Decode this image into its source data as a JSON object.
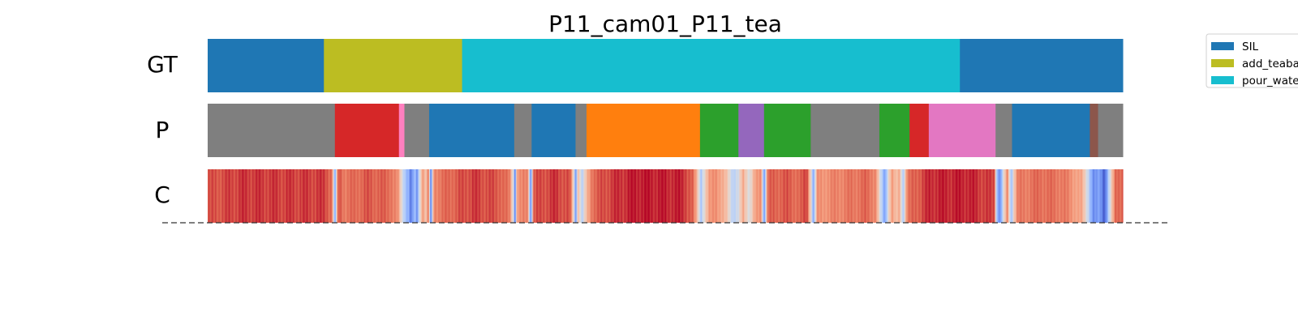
{
  "chart_data": {
    "type": "segmentation",
    "title": "P11_cam01_P11_tea",
    "total_frames": 1000,
    "rows": [
      {
        "label": "GT",
        "segments": [
          {
            "start": 0,
            "end": 127,
            "class": "SIL"
          },
          {
            "start": 127,
            "end": 278,
            "class": "add_teabag"
          },
          {
            "start": 278,
            "end": 822,
            "class": "pour_water"
          },
          {
            "start": 822,
            "end": 1000,
            "class": "SIL"
          }
        ]
      },
      {
        "label": "P",
        "segments": [
          {
            "start": 0,
            "end": 139,
            "color": "#7f7f7f"
          },
          {
            "start": 139,
            "end": 209,
            "color": "#d62728"
          },
          {
            "start": 209,
            "end": 215,
            "color": "#ff7fbf"
          },
          {
            "start": 215,
            "end": 242,
            "color": "#7f7f7f"
          },
          {
            "start": 242,
            "end": 335,
            "color": "#1f77b4"
          },
          {
            "start": 335,
            "end": 354,
            "color": "#7f7f7f"
          },
          {
            "start": 354,
            "end": 402,
            "color": "#1f77b4"
          },
          {
            "start": 402,
            "end": 414,
            "color": "#7f7f7f"
          },
          {
            "start": 414,
            "end": 538,
            "color": "#ff7f0e"
          },
          {
            "start": 538,
            "end": 580,
            "color": "#2ca02c"
          },
          {
            "start": 580,
            "end": 608,
            "color": "#9467bd"
          },
          {
            "start": 608,
            "end": 659,
            "color": "#2ca02c"
          },
          {
            "start": 659,
            "end": 734,
            "color": "#7f7f7f"
          },
          {
            "start": 734,
            "end": 767,
            "color": "#2ca02c"
          },
          {
            "start": 767,
            "end": 788,
            "color": "#d62728"
          },
          {
            "start": 788,
            "end": 861,
            "color": "#e377c2"
          },
          {
            "start": 861,
            "end": 879,
            "color": "#7f7f7f"
          },
          {
            "start": 879,
            "end": 964,
            "color": "#1f77b4"
          },
          {
            "start": 964,
            "end": 973,
            "color": "#8c564b"
          },
          {
            "start": 973,
            "end": 1000,
            "color": "#7f7f7f"
          }
        ]
      },
      {
        "label": "C",
        "colormap": "coolwarm",
        "confidence_anchors": [
          [
            0,
            0.88
          ],
          [
            40,
            0.93
          ],
          [
            80,
            0.92
          ],
          [
            128,
            0.92
          ],
          [
            136,
            0.85
          ],
          [
            139,
            0.15
          ],
          [
            141,
            0.6
          ],
          [
            143,
            0.9
          ],
          [
            150,
            0.82
          ],
          [
            175,
            0.88
          ],
          [
            200,
            0.85
          ],
          [
            208,
            0.75
          ],
          [
            212,
            0.5
          ],
          [
            216,
            0.35
          ],
          [
            220,
            0.25
          ],
          [
            222,
            0.08
          ],
          [
            226,
            0.3
          ],
          [
            229,
            0.15
          ],
          [
            232,
            0.55
          ],
          [
            236,
            0.8
          ],
          [
            238,
            0.55
          ],
          [
            241,
            0.85
          ],
          [
            244,
            0.05
          ],
          [
            247,
            0.8
          ],
          [
            262,
            0.85
          ],
          [
            290,
            0.92
          ],
          [
            320,
            0.88
          ],
          [
            330,
            0.8
          ],
          [
            334,
            0.5
          ],
          [
            336,
            0.1
          ],
          [
            338,
            0.75
          ],
          [
            350,
            0.8
          ],
          [
            353,
            0.1
          ],
          [
            356,
            0.88
          ],
          [
            380,
            0.93
          ],
          [
            396,
            0.88
          ],
          [
            400,
            0.55
          ],
          [
            402,
            0.15
          ],
          [
            405,
            0.7
          ],
          [
            409,
            0.35
          ],
          [
            413,
            0.6
          ],
          [
            420,
            0.85
          ],
          [
            440,
            0.92
          ],
          [
            470,
            0.97
          ],
          [
            520,
            0.95
          ],
          [
            530,
            0.85
          ],
          [
            535,
            0.65
          ],
          [
            539,
            0.35
          ],
          [
            543,
            0.55
          ],
          [
            548,
            0.72
          ],
          [
            555,
            0.8
          ],
          [
            568,
            0.6
          ],
          [
            574,
            0.4
          ],
          [
            580,
            0.45
          ],
          [
            585,
            0.7
          ],
          [
            592,
            0.5
          ],
          [
            598,
            0.7
          ],
          [
            605,
            0.78
          ],
          [
            608,
            0.15
          ],
          [
            612,
            0.85
          ],
          [
            630,
            0.88
          ],
          [
            648,
            0.85
          ],
          [
            655,
            0.92
          ],
          [
            660,
            0.5
          ],
          [
            662,
            0.2
          ],
          [
            666,
            0.75
          ],
          [
            690,
            0.8
          ],
          [
            720,
            0.85
          ],
          [
            730,
            0.8
          ],
          [
            735,
            0.45
          ],
          [
            740,
            0.2
          ],
          [
            744,
            0.55
          ],
          [
            748,
            0.75
          ],
          [
            752,
            0.6
          ],
          [
            756,
            0.7
          ],
          [
            760,
            0.35
          ],
          [
            764,
            0.8
          ],
          [
            770,
            0.85
          ],
          [
            790,
            0.95
          ],
          [
            830,
            0.96
          ],
          [
            860,
            0.9
          ],
          [
            862,
            0.35
          ],
          [
            866,
            0.15
          ],
          [
            870,
            0.5
          ],
          [
            874,
            0.8
          ],
          [
            878,
            0.3
          ],
          [
            881,
            0.6
          ],
          [
            885,
            0.8
          ],
          [
            910,
            0.85
          ],
          [
            935,
            0.82
          ],
          [
            955,
            0.7
          ],
          [
            963,
            0.4
          ],
          [
            968,
            0.15
          ],
          [
            975,
            0.2
          ],
          [
            980,
            0.05
          ],
          [
            985,
            0.4
          ],
          [
            992,
            0.85
          ],
          [
            1000,
            0.88
          ]
        ]
      }
    ],
    "legend": {
      "placement": "top-right",
      "entries": [
        {
          "label": "SIL",
          "color": "#1f77b4"
        },
        {
          "label": "add_teabag",
          "color": "#bcbd22"
        },
        {
          "label": "pour_water",
          "color": "#17becf"
        }
      ]
    }
  }
}
